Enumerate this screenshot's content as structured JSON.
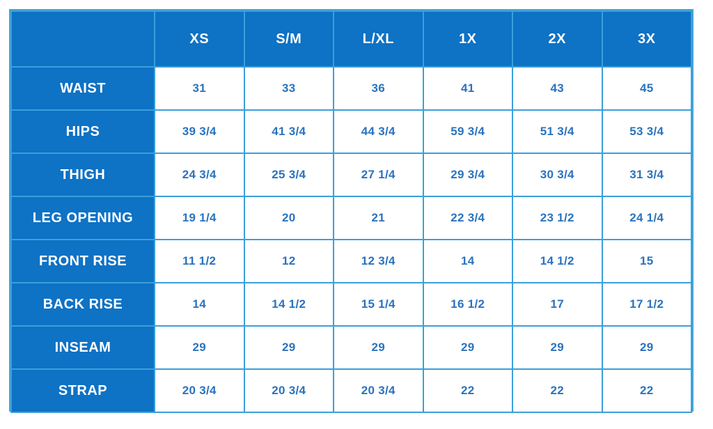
{
  "colors": {
    "cell_blue": "#0e72c5",
    "grid_line_blue": "#3aa0db",
    "value_text_blue": "#2a73be",
    "label_text": "#ffffff",
    "page_background": "#ffffff"
  },
  "chart_data": {
    "type": "table",
    "title": "",
    "columns": [
      "XS",
      "S/M",
      "L/XL",
      "1X",
      "2X",
      "3X"
    ],
    "rows": [
      {
        "label": "WAIST",
        "values": [
          "31",
          "33",
          "36",
          "41",
          "43",
          "45"
        ]
      },
      {
        "label": "HIPS",
        "values": [
          "39 3/4",
          "41 3/4",
          "44 3/4",
          "59 3/4",
          "51 3/4",
          "53 3/4"
        ]
      },
      {
        "label": "THIGH",
        "values": [
          "24 3/4",
          "25 3/4",
          "27 1/4",
          "29 3/4",
          "30 3/4",
          "31 3/4"
        ]
      },
      {
        "label": "LEG OPENING",
        "values": [
          "19 1/4",
          "20",
          "21",
          "22 3/4",
          "23 1/2",
          "24 1/4"
        ]
      },
      {
        "label": "FRONT RISE",
        "values": [
          "11 1/2",
          "12",
          "12 3/4",
          "14",
          "14 1/2",
          "15"
        ]
      },
      {
        "label": "BACK RISE",
        "values": [
          "14",
          "14 1/2",
          "15 1/4",
          "16 1/2",
          "17",
          "17 1/2"
        ]
      },
      {
        "label": "INSEAM",
        "values": [
          "29",
          "29",
          "29",
          "29",
          "29",
          "29"
        ]
      },
      {
        "label": "STRAP",
        "values": [
          "20 3/4",
          "20 3/4",
          "20 3/4",
          "22",
          "22",
          "22"
        ]
      }
    ]
  }
}
